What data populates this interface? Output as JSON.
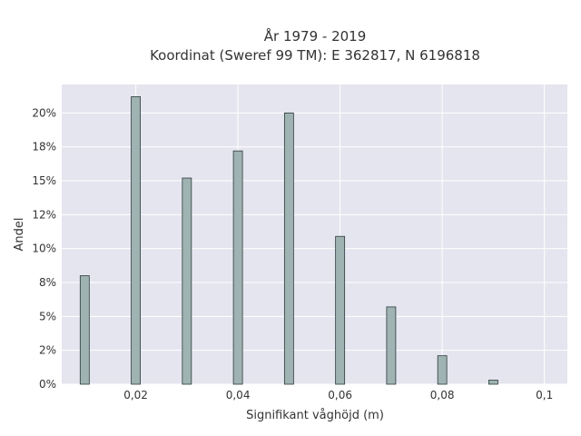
{
  "chart_data": {
    "type": "bar",
    "title_line1": "År 1979 - 2019",
    "title_line2": "Koordinat (Sweref 99 TM): E 362817, N 6196818",
    "xlabel": "Signifikant våghöjd (m)",
    "ylabel": "Andel",
    "x": [
      0.01,
      0.02,
      0.03,
      0.04,
      0.05,
      0.06,
      0.07,
      0.08,
      0.09
    ],
    "values": [
      8.0,
      21.2,
      15.2,
      17.2,
      20.0,
      10.9,
      5.7,
      2.1,
      0.3
    ],
    "xlim": [
      0.0055,
      0.1045
    ],
    "ylim": [
      0,
      22.1
    ],
    "xticks": [
      {
        "value": 0.02,
        "label": "0,02"
      },
      {
        "value": 0.04,
        "label": "0,04"
      },
      {
        "value": 0.06,
        "label": "0,06"
      },
      {
        "value": 0.08,
        "label": "0,08"
      },
      {
        "value": 0.1,
        "label": "0,1"
      }
    ],
    "yticks": [
      {
        "value": 0,
        "label": "0%"
      },
      {
        "value": 2.5,
        "label": "2%"
      },
      {
        "value": 5,
        "label": "5%"
      },
      {
        "value": 7.5,
        "label": "8%"
      },
      {
        "value": 10,
        "label": "10%"
      },
      {
        "value": 12.5,
        "label": "12%"
      },
      {
        "value": 15,
        "label": "15%"
      },
      {
        "value": 17.5,
        "label": "18%"
      },
      {
        "value": 20,
        "label": "20%"
      }
    ],
    "grid": true,
    "colors": {
      "plot_bg": "#e5e5ef",
      "grid": "#ffffff",
      "bar_fill": "#9fb3b3",
      "bar_stroke": "#2f3a3a"
    }
  }
}
